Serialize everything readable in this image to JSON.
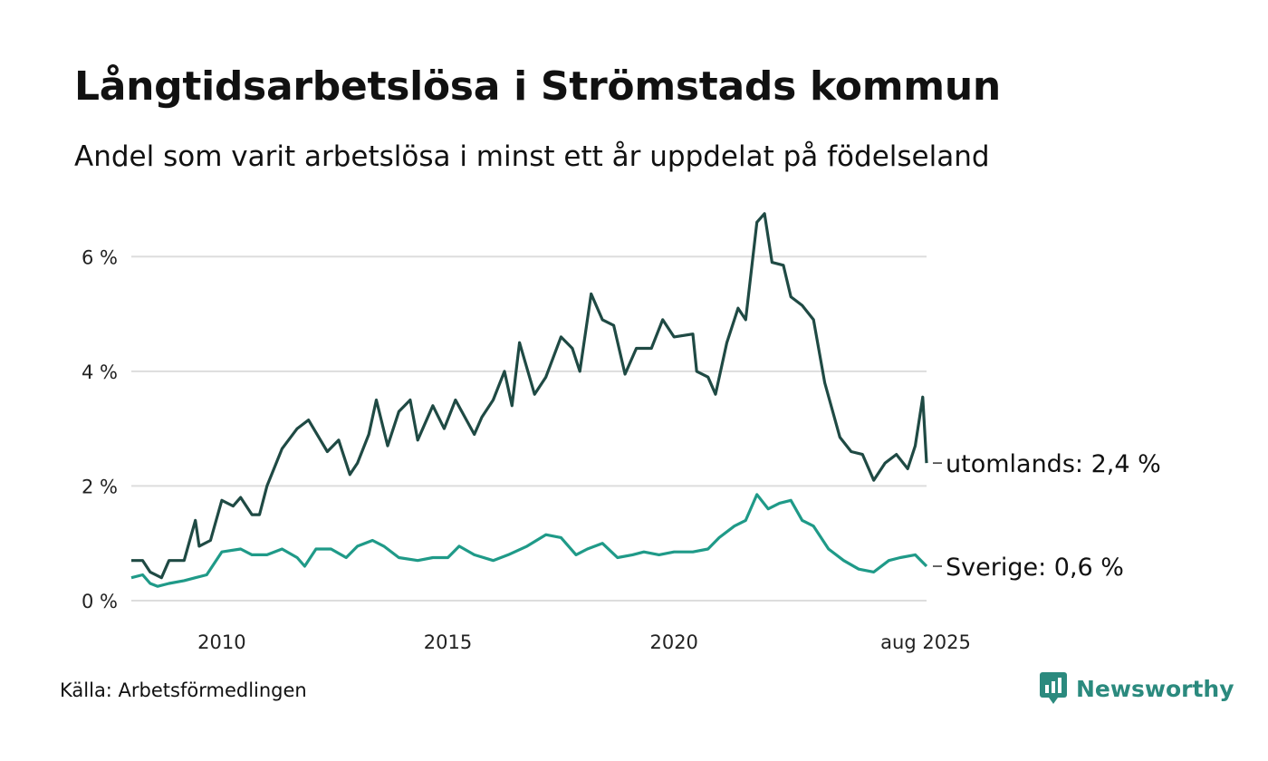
{
  "title": "Långtidsarbetslösa i Strömstads kommun",
  "subtitle": "Andel som varit arbetslösa i minst ett år uppdelat på födelseland",
  "source": "Källa: Arbetsförmedlingen",
  "brand": "Newsworthy",
  "colors": {
    "utomlands": "#1f4a44",
    "sverige": "#1f9a88",
    "grid": "#dddddd",
    "brand": "#2b8a7e"
  },
  "chart_data": {
    "type": "line",
    "title": "Långtidsarbetslösa i Strömstads kommun",
    "subtitle": "Andel som varit arbetslösa i minst ett år uppdelat på födelseland",
    "xlabel": "",
    "ylabel": "",
    "x_range": [
      "2008-01",
      "2025-08"
    ],
    "ylim": [
      0,
      7
    ],
    "y_ticks": [
      0,
      2,
      4,
      6
    ],
    "y_tick_labels": [
      "0 %",
      "2 %",
      "4 %",
      "6 %"
    ],
    "x_ticks": [
      "2010-01",
      "2015-01",
      "2020-01",
      "2025-08"
    ],
    "x_tick_labels": [
      "2010",
      "2015",
      "2020",
      "aug 2025"
    ],
    "grid": true,
    "legend": "end-of-line labels",
    "series": [
      {
        "name": "utomlands",
        "end_label": "utomlands: 2,4 %",
        "points": [
          [
            "2008-01",
            0.7
          ],
          [
            "2008-04",
            0.7
          ],
          [
            "2008-06",
            0.5
          ],
          [
            "2008-09",
            0.4
          ],
          [
            "2008-11",
            0.7
          ],
          [
            "2009-03",
            0.7
          ],
          [
            "2009-06",
            1.4
          ],
          [
            "2009-07",
            0.95
          ],
          [
            "2009-10",
            1.05
          ],
          [
            "2010-01",
            1.75
          ],
          [
            "2010-04",
            1.65
          ],
          [
            "2010-06",
            1.8
          ],
          [
            "2010-09",
            1.5
          ],
          [
            "2010-11",
            1.5
          ],
          [
            "2011-01",
            2.0
          ],
          [
            "2011-05",
            2.65
          ],
          [
            "2011-09",
            3.0
          ],
          [
            "2011-12",
            3.15
          ],
          [
            "2012-05",
            2.6
          ],
          [
            "2012-08",
            2.8
          ],
          [
            "2012-11",
            2.2
          ],
          [
            "2013-01",
            2.4
          ],
          [
            "2013-04",
            2.9
          ],
          [
            "2013-06",
            3.5
          ],
          [
            "2013-09",
            2.7
          ],
          [
            "2013-12",
            3.3
          ],
          [
            "2014-03",
            3.5
          ],
          [
            "2014-05",
            2.8
          ],
          [
            "2014-09",
            3.4
          ],
          [
            "2014-12",
            3.0
          ],
          [
            "2015-03",
            3.5
          ],
          [
            "2015-08",
            2.9
          ],
          [
            "2015-10",
            3.2
          ],
          [
            "2016-01",
            3.5
          ],
          [
            "2016-04",
            4.0
          ],
          [
            "2016-06",
            3.4
          ],
          [
            "2016-08",
            4.5
          ],
          [
            "2016-12",
            3.6
          ],
          [
            "2017-03",
            3.9
          ],
          [
            "2017-07",
            4.6
          ],
          [
            "2017-10",
            4.4
          ],
          [
            "2017-12",
            4.0
          ],
          [
            "2018-03",
            5.35
          ],
          [
            "2018-06",
            4.9
          ],
          [
            "2018-09",
            4.8
          ],
          [
            "2018-12",
            3.95
          ],
          [
            "2019-03",
            4.4
          ],
          [
            "2019-07",
            4.4
          ],
          [
            "2019-10",
            4.9
          ],
          [
            "2020-01",
            4.6
          ],
          [
            "2020-06",
            4.65
          ],
          [
            "2020-07",
            4.0
          ],
          [
            "2020-10",
            3.9
          ],
          [
            "2020-12",
            3.6
          ],
          [
            "2021-03",
            4.5
          ],
          [
            "2021-06",
            5.1
          ],
          [
            "2021-08",
            4.9
          ],
          [
            "2021-11",
            6.6
          ],
          [
            "2022-01",
            6.75
          ],
          [
            "2022-03",
            5.9
          ],
          [
            "2022-06",
            5.85
          ],
          [
            "2022-08",
            5.3
          ],
          [
            "2022-11",
            5.15
          ],
          [
            "2023-02",
            4.9
          ],
          [
            "2023-05",
            3.8
          ],
          [
            "2023-09",
            2.85
          ],
          [
            "2023-12",
            2.6
          ],
          [
            "2024-03",
            2.55
          ],
          [
            "2024-06",
            2.1
          ],
          [
            "2024-09",
            2.4
          ],
          [
            "2024-12",
            2.55
          ],
          [
            "2025-03",
            2.3
          ],
          [
            "2025-05",
            2.7
          ],
          [
            "2025-07",
            3.55
          ],
          [
            "2025-08",
            2.4
          ]
        ]
      },
      {
        "name": "Sverige",
        "end_label": "Sverige: 0,6 %",
        "points": [
          [
            "2008-01",
            0.4
          ],
          [
            "2008-04",
            0.45
          ],
          [
            "2008-06",
            0.3
          ],
          [
            "2008-08",
            0.25
          ],
          [
            "2008-11",
            0.3
          ],
          [
            "2009-03",
            0.35
          ],
          [
            "2009-06",
            0.4
          ],
          [
            "2009-09",
            0.45
          ],
          [
            "2010-01",
            0.85
          ],
          [
            "2010-06",
            0.9
          ],
          [
            "2010-09",
            0.8
          ],
          [
            "2011-01",
            0.8
          ],
          [
            "2011-05",
            0.9
          ],
          [
            "2011-09",
            0.75
          ],
          [
            "2011-11",
            0.6
          ],
          [
            "2012-02",
            0.9
          ],
          [
            "2012-06",
            0.9
          ],
          [
            "2012-10",
            0.75
          ],
          [
            "2013-01",
            0.95
          ],
          [
            "2013-05",
            1.05
          ],
          [
            "2013-08",
            0.95
          ],
          [
            "2013-12",
            0.75
          ],
          [
            "2014-05",
            0.7
          ],
          [
            "2014-09",
            0.75
          ],
          [
            "2015-01",
            0.75
          ],
          [
            "2015-04",
            0.95
          ],
          [
            "2015-08",
            0.8
          ],
          [
            "2016-01",
            0.7
          ],
          [
            "2016-05",
            0.8
          ],
          [
            "2016-10",
            0.95
          ],
          [
            "2017-03",
            1.15
          ],
          [
            "2017-07",
            1.1
          ],
          [
            "2017-11",
            0.8
          ],
          [
            "2018-02",
            0.9
          ],
          [
            "2018-06",
            1.0
          ],
          [
            "2018-10",
            0.75
          ],
          [
            "2019-02",
            0.8
          ],
          [
            "2019-05",
            0.85
          ],
          [
            "2019-09",
            0.8
          ],
          [
            "2020-01",
            0.85
          ],
          [
            "2020-06",
            0.85
          ],
          [
            "2020-10",
            0.9
          ],
          [
            "2021-01",
            1.1
          ],
          [
            "2021-05",
            1.3
          ],
          [
            "2021-08",
            1.4
          ],
          [
            "2021-11",
            1.85
          ],
          [
            "2022-02",
            1.6
          ],
          [
            "2022-05",
            1.7
          ],
          [
            "2022-08",
            1.75
          ],
          [
            "2022-11",
            1.4
          ],
          [
            "2023-02",
            1.3
          ],
          [
            "2023-06",
            0.9
          ],
          [
            "2023-10",
            0.7
          ],
          [
            "2024-02",
            0.55
          ],
          [
            "2024-06",
            0.5
          ],
          [
            "2024-10",
            0.7
          ],
          [
            "2025-01",
            0.75
          ],
          [
            "2025-05",
            0.8
          ],
          [
            "2025-08",
            0.6
          ]
        ]
      }
    ]
  }
}
